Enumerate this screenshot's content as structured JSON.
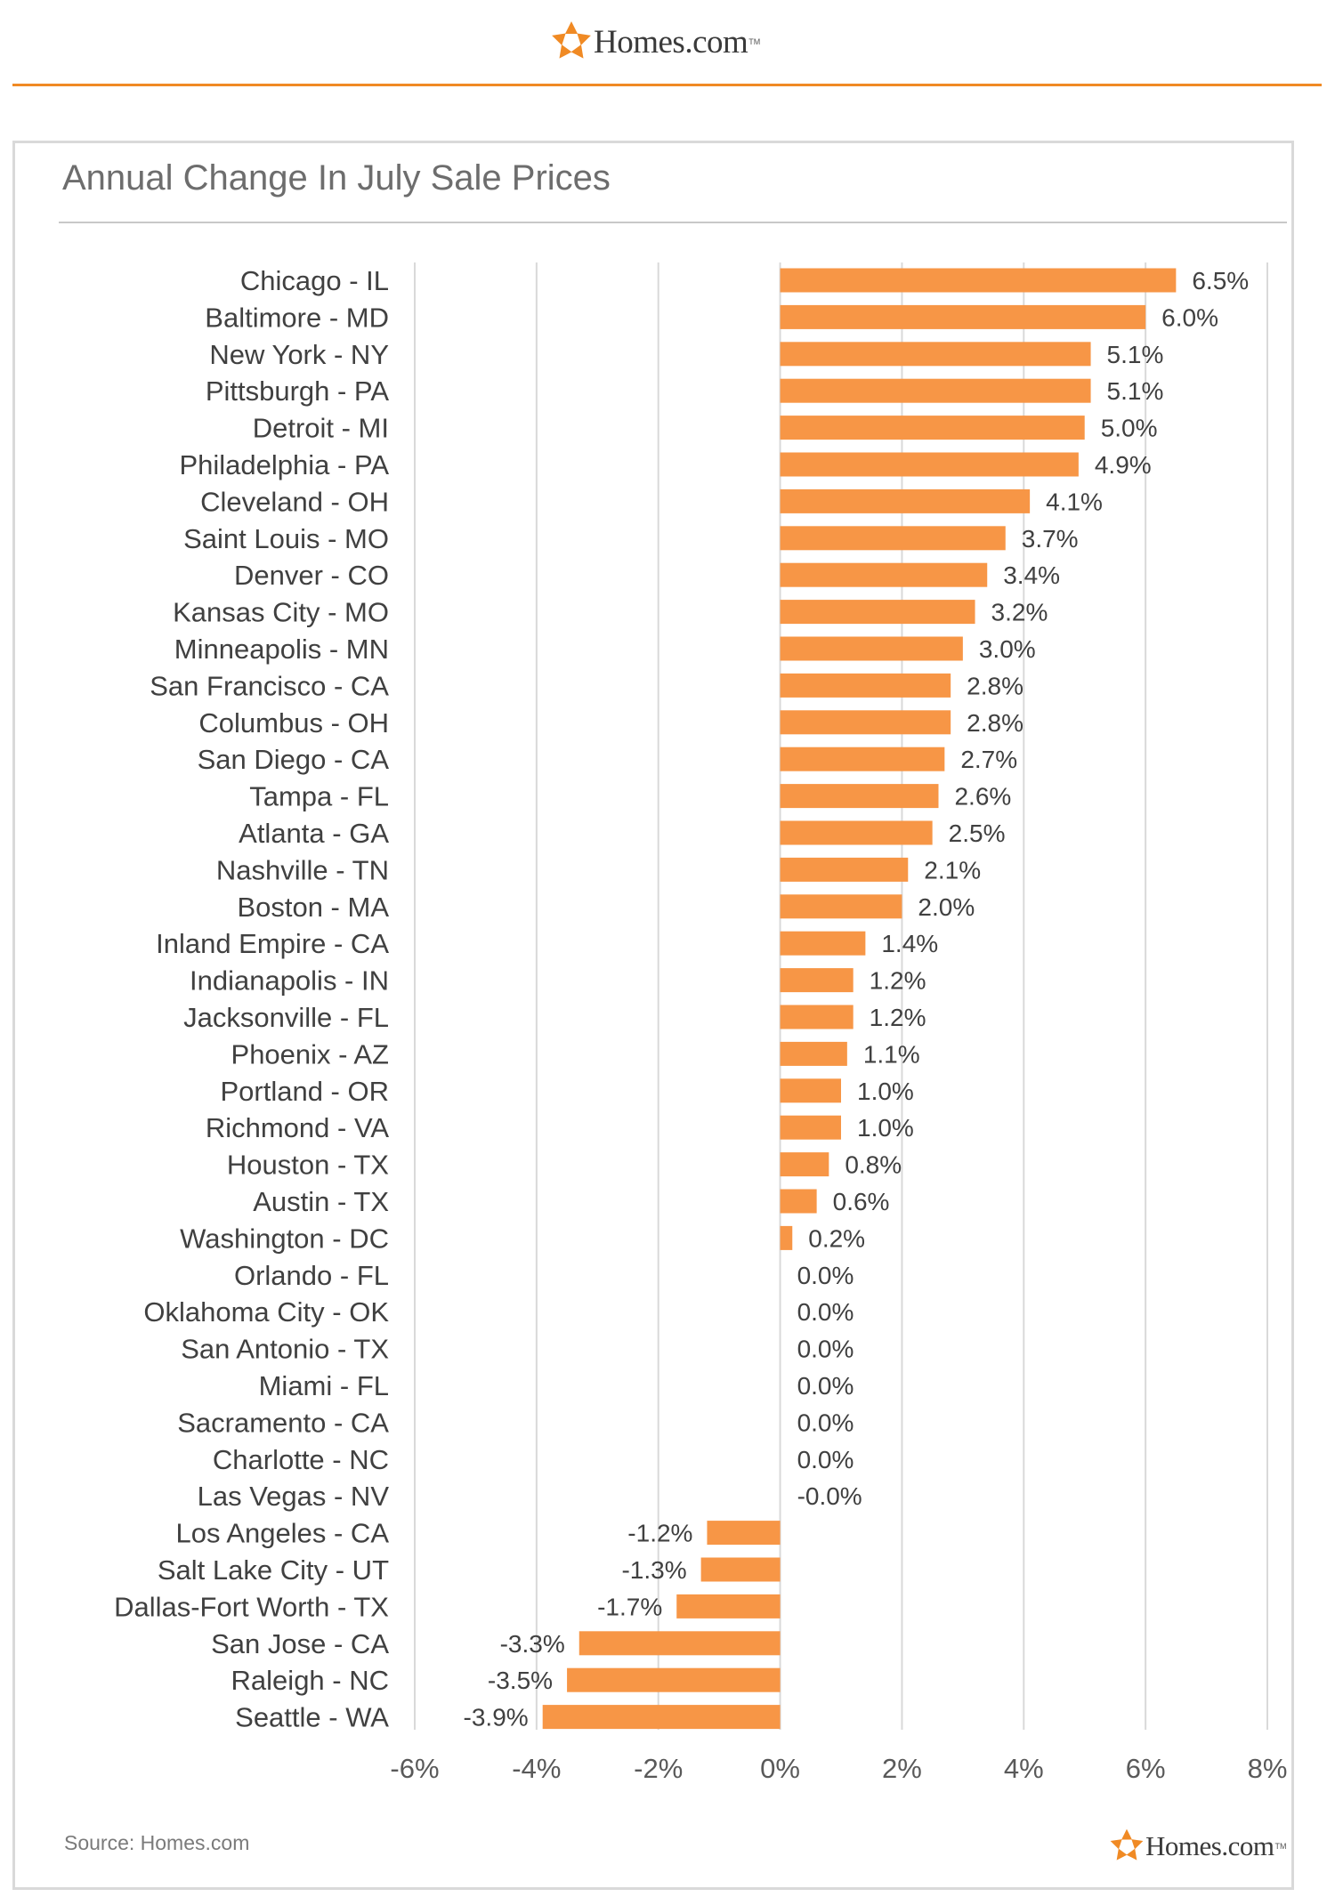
{
  "brand": {
    "name": "Homes.com",
    "tm": "TM",
    "accent_color": "#f08a24",
    "logo_icon": "homes-star-logo-icon"
  },
  "source_text": "Source: Homes.com",
  "chart_data": {
    "type": "bar",
    "orientation": "horizontal",
    "title": "Annual Change In July Sale Prices",
    "xlabel": "",
    "ylabel": "",
    "xlim": [
      -6,
      8
    ],
    "x_ticks": [
      -6,
      -4,
      -2,
      0,
      2,
      4,
      6,
      8
    ],
    "x_tick_labels": [
      "-6%",
      "-4%",
      "-2%",
      "0%",
      "2%",
      "4%",
      "6%",
      "8%"
    ],
    "grid": "vertical",
    "bar_color": "#f79646",
    "categories": [
      "Chicago - IL",
      "Baltimore - MD",
      "New York - NY",
      "Pittsburgh - PA",
      "Detroit - MI",
      "Philadelphia - PA",
      "Cleveland - OH",
      "Saint Louis - MO",
      "Denver - CO",
      "Kansas City - MO",
      "Minneapolis - MN",
      "San Francisco - CA",
      "Columbus - OH",
      "San Diego - CA",
      "Tampa - FL",
      "Atlanta - GA",
      "Nashville - TN",
      "Boston - MA",
      "Inland Empire - CA",
      "Indianapolis - IN",
      "Jacksonville - FL",
      "Phoenix - AZ",
      "Portland - OR",
      "Richmond - VA",
      "Houston - TX",
      "Austin - TX",
      "Washington - DC",
      "Orlando - FL",
      "Oklahoma City - OK",
      "San Antonio - TX",
      "Miami - FL",
      "Sacramento - CA",
      "Charlotte - NC",
      "Las Vegas - NV",
      "Los Angeles - CA",
      "Salt Lake City - UT",
      "Dallas-Fort Worth - TX",
      "San Jose - CA",
      "Raleigh - NC",
      "Seattle - WA"
    ],
    "values": [
      6.5,
      6.0,
      5.1,
      5.1,
      5.0,
      4.9,
      4.1,
      3.7,
      3.4,
      3.2,
      3.0,
      2.8,
      2.8,
      2.7,
      2.6,
      2.5,
      2.1,
      2.0,
      1.4,
      1.2,
      1.2,
      1.1,
      1.0,
      1.0,
      0.8,
      0.6,
      0.2,
      0.0,
      0.0,
      0.0,
      0.0,
      0.0,
      0.0,
      -0.0,
      -1.2,
      -1.3,
      -1.7,
      -3.3,
      -3.5,
      -3.9
    ],
    "value_labels": [
      "6.5%",
      "6.0%",
      "5.1%",
      "5.1%",
      "5.0%",
      "4.9%",
      "4.1%",
      "3.7%",
      "3.4%",
      "3.2%",
      "3.0%",
      "2.8%",
      "2.8%",
      "2.7%",
      "2.6%",
      "2.5%",
      "2.1%",
      "2.0%",
      "1.4%",
      "1.2%",
      "1.2%",
      "1.1%",
      "1.0%",
      "1.0%",
      "0.8%",
      "0.6%",
      "0.2%",
      "0.0%",
      "0.0%",
      "0.0%",
      "0.0%",
      "0.0%",
      "0.0%",
      "-0.0%",
      "-1.2%",
      "-1.3%",
      "-1.7%",
      "-3.3%",
      "-3.5%",
      "-3.9%"
    ]
  }
}
